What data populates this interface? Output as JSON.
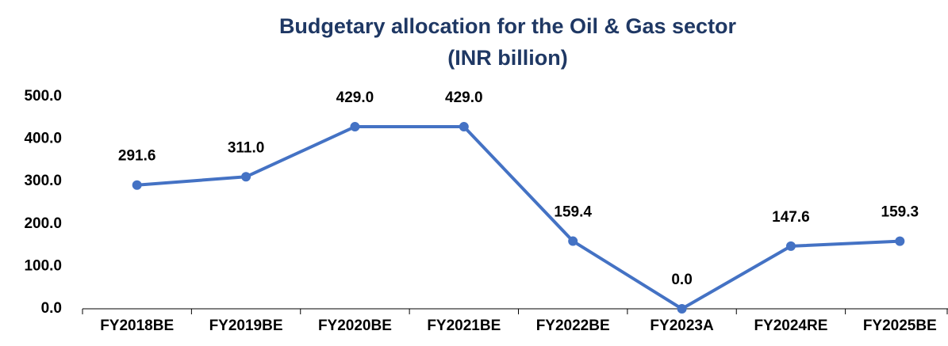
{
  "chart_data": {
    "type": "line",
    "title": "Budgetary allocation for the Oil & Gas sector",
    "subtitle": "(INR billion)",
    "categories": [
      "FY2018BE",
      "FY2019BE",
      "FY2020BE",
      "FY2021BE",
      "FY2022BE",
      "FY2023A",
      "FY2024RE",
      "FY2025BE"
    ],
    "series": [
      {
        "name": "Budgetary allocation",
        "color": "#4472c4",
        "values": [
          291.6,
          311.0,
          429.0,
          429.0,
          159.4,
          0.0,
          147.6,
          159.3
        ],
        "value_labels": [
          "291.6",
          "311.0",
          "429.0",
          "429.0",
          "159.4",
          "0.0",
          "147.6",
          "159.3"
        ]
      }
    ],
    "ylim": [
      0,
      500
    ],
    "yticks": [
      {
        "value": 0,
        "label": "0.0"
      },
      {
        "value": 100,
        "label": "100.0"
      },
      {
        "value": 200,
        "label": "200.0"
      },
      {
        "value": 300,
        "label": "300.0"
      },
      {
        "value": 400,
        "label": "400.0"
      },
      {
        "value": 500,
        "label": "500.0"
      }
    ],
    "grid": false
  }
}
